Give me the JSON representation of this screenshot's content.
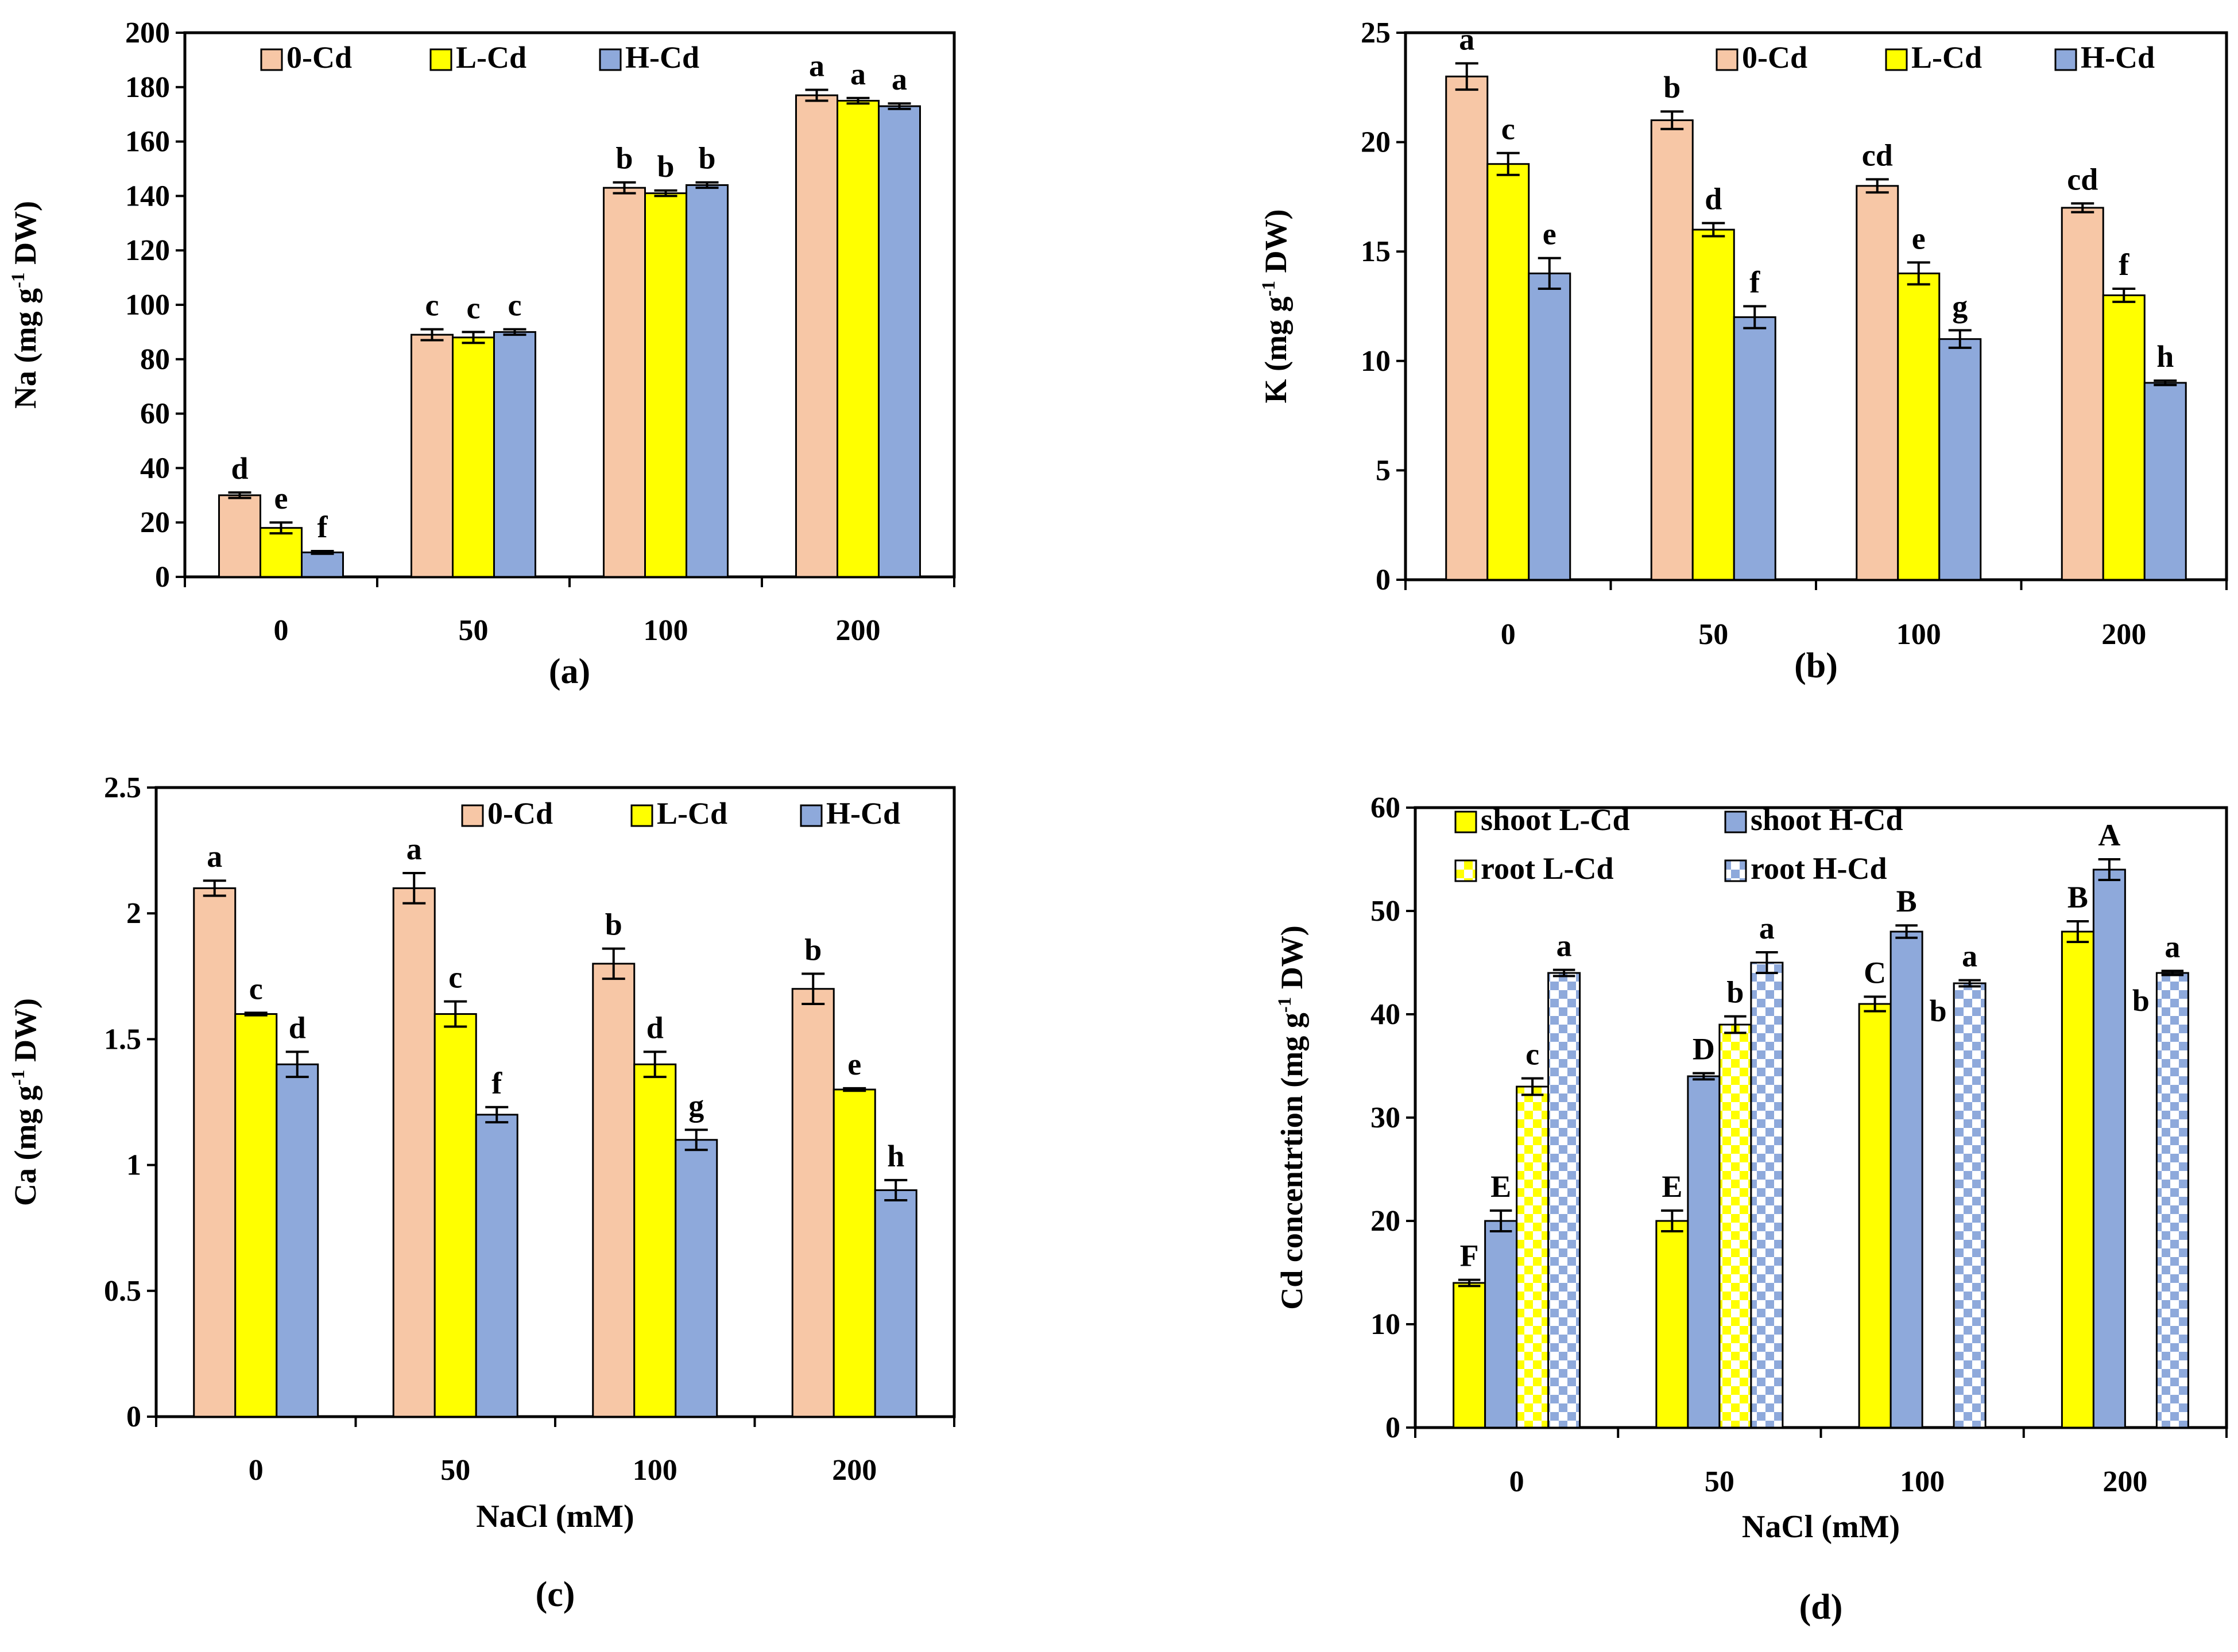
{
  "figure": {
    "colors": {
      "zero_cd": "#F7C7A6",
      "l_cd": "#FFFF00",
      "h_cd": "#8EA9DB",
      "root_check": "#FFFFFF",
      "axis": "#000000"
    }
  },
  "chart_data": [
    {
      "id": "a",
      "type": "bar",
      "panel_label": "(a)",
      "categories": [
        "0",
        "50",
        "100",
        "200"
      ],
      "series": [
        {
          "name": "0-Cd",
          "color": "#F7C7A6",
          "pattern": "solid",
          "values": [
            30,
            89,
            143,
            177
          ],
          "errors": [
            1,
            2,
            2,
            2
          ],
          "letters": [
            "d",
            "c",
            "b",
            "a"
          ]
        },
        {
          "name": "L-Cd",
          "color": "#FFFF00",
          "pattern": "solid",
          "values": [
            18,
            88,
            141,
            175
          ],
          "errors": [
            2,
            2,
            1,
            1
          ],
          "letters": [
            "e",
            "c",
            "b",
            "a"
          ]
        },
        {
          "name": "H-Cd",
          "color": "#8EA9DB",
          "pattern": "solid",
          "values": [
            9,
            90,
            144,
            173
          ],
          "errors": [
            0.5,
            1,
            1,
            1
          ],
          "letters": [
            "f",
            "c",
            "b",
            "a"
          ]
        }
      ],
      "ylabel_main": "Na (mg g",
      "ylabel_sup": "-1",
      "ylabel_tail": " DW)",
      "xlabel": "",
      "ylim": [
        0,
        200
      ],
      "yticks": [
        "0",
        "20",
        "40",
        "60",
        "80",
        "100",
        "120",
        "140",
        "160",
        "180",
        "200"
      ],
      "legend_columns": 3
    },
    {
      "id": "b",
      "type": "bar",
      "panel_label": "(b)",
      "categories": [
        "0",
        "50",
        "100",
        "200"
      ],
      "series": [
        {
          "name": "0-Cd",
          "color": "#F7C7A6",
          "pattern": "solid",
          "values": [
            23,
            21,
            18,
            17
          ],
          "errors": [
            0.6,
            0.4,
            0.3,
            0.2
          ],
          "letters": [
            "a",
            "b",
            "cd",
            "cd"
          ]
        },
        {
          "name": "L-Cd",
          "color": "#FFFF00",
          "pattern": "solid",
          "values": [
            19,
            16,
            14,
            13
          ],
          "errors": [
            0.5,
            0.3,
            0.5,
            0.3
          ],
          "letters": [
            "c",
            "d",
            "e",
            "f"
          ]
        },
        {
          "name": "H-Cd",
          "color": "#8EA9DB",
          "pattern": "solid",
          "values": [
            14,
            12,
            11,
            9
          ],
          "errors": [
            0.7,
            0.5,
            0.4,
            0.1
          ],
          "letters": [
            "e",
            "f",
            "g",
            "h"
          ]
        }
      ],
      "ylabel_main": "K (mg g",
      "ylabel_sup": "-1",
      "ylabel_tail": " DW)",
      "xlabel": "",
      "ylim": [
        0,
        25
      ],
      "yticks": [
        "0",
        "5",
        "10",
        "15",
        "20",
        "25"
      ],
      "legend_columns": 3
    },
    {
      "id": "c",
      "type": "bar",
      "panel_label": "(c)",
      "categories": [
        "0",
        "50",
        "100",
        "200"
      ],
      "series": [
        {
          "name": "0-Cd",
          "color": "#F7C7A6",
          "pattern": "solid",
          "values": [
            2.1,
            2.1,
            1.8,
            1.7
          ],
          "errors": [
            0.03,
            0.06,
            0.06,
            0.06
          ],
          "letters": [
            "a",
            "a",
            "b",
            "b"
          ]
        },
        {
          "name": "L-Cd",
          "color": "#FFFF00",
          "pattern": "solid",
          "values": [
            1.6,
            1.6,
            1.4,
            1.3
          ],
          "errors": [
            0.005,
            0.05,
            0.05,
            0.005
          ],
          "letters": [
            "c",
            "c",
            "d",
            "e"
          ]
        },
        {
          "name": "H-Cd",
          "color": "#8EA9DB",
          "pattern": "solid",
          "values": [
            1.4,
            1.2,
            1.1,
            0.9
          ],
          "errors": [
            0.05,
            0.03,
            0.04,
            0.04
          ],
          "letters": [
            "d",
            "f",
            "g",
            "h"
          ]
        }
      ],
      "ylabel_main": "Ca (mg g",
      "ylabel_sup": "-1",
      "ylabel_tail": " DW)",
      "xlabel": "NaCl (mM)",
      "ylim": [
        0,
        2.5
      ],
      "yticks": [
        "0",
        "0.5",
        "1",
        "1.5",
        "2",
        "2.5"
      ],
      "legend_columns": 3
    },
    {
      "id": "d",
      "type": "bar",
      "panel_label": "(d)",
      "categories": [
        "0",
        "50",
        "100",
        "200"
      ],
      "series": [
        {
          "name": "shoot L-Cd",
          "color": "#FFFF00",
          "pattern": "solid",
          "values": [
            14,
            20,
            41,
            48
          ],
          "errors": [
            0.3,
            1,
            0.7,
            1
          ],
          "letters": [
            "F",
            "E",
            "C",
            "B"
          ]
        },
        {
          "name": "shoot H-Cd",
          "color": "#8EA9DB",
          "pattern": "solid",
          "values": [
            20,
            34,
            48,
            54
          ],
          "errors": [
            1,
            0.3,
            0.6,
            1
          ],
          "letters": [
            "E",
            "D",
            "B",
            "A"
          ]
        },
        {
          "name": "root L-Cd",
          "color": "#FFFF00",
          "pattern": "check",
          "values": [
            33,
            39,
            null,
            null
          ],
          "errors": [
            0.8,
            0.8,
            0,
            0
          ],
          "letters": [
            "c",
            "b",
            "",
            ""
          ]
        },
        {
          "name": "root H-Cd",
          "color": "#8EA9DB",
          "pattern": "check",
          "values": [
            44,
            45,
            43,
            44
          ],
          "errors": [
            0.3,
            1,
            0.3,
            0.2
          ],
          "letters": [
            "a",
            "a",
            "a",
            "a"
          ]
        }
      ],
      "extra_marks": [
        {
          "text": "b",
          "category": 2,
          "value": 38
        },
        {
          "text": "b",
          "category": 3,
          "value": 39
        }
      ],
      "ylabel_main": "Cd concentrtion (mg g",
      "ylabel_sup": "-1",
      "ylabel_tail": " DW)",
      "xlabel": "NaCl (mM)",
      "ylim": [
        0,
        60
      ],
      "yticks": [
        "0",
        "10",
        "20",
        "30",
        "40",
        "50",
        "60"
      ],
      "legend_columns": 2
    }
  ]
}
